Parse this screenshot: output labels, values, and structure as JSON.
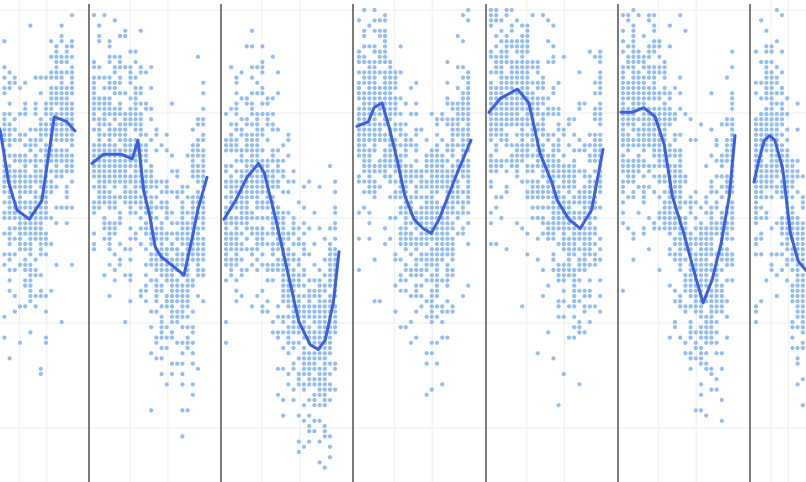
{
  "chart_data": {
    "type": "scatter",
    "title": "",
    "xlabel": "",
    "ylabel": "",
    "grid": true,
    "legend": "none",
    "colors": {
      "points": "#93bdf0",
      "line": "#3c5fdc",
      "divider": "#444444",
      "grid": "#eeeeee"
    },
    "panels": [
      {
        "line": [
          [
            0,
            0.78
          ],
          [
            0.1,
            0.74
          ],
          [
            0.2,
            0.63
          ],
          [
            0.3,
            0.57
          ],
          [
            0.45,
            0.55
          ],
          [
            0.6,
            0.59
          ],
          [
            0.75,
            0.77
          ],
          [
            0.9,
            0.76
          ],
          [
            1.0,
            0.74
          ]
        ]
      },
      {
        "line": [
          [
            0,
            0.67
          ],
          [
            0.1,
            0.69
          ],
          [
            0.25,
            0.69
          ],
          [
            0.35,
            0.68
          ],
          [
            0.4,
            0.72
          ],
          [
            0.45,
            0.61
          ],
          [
            0.5,
            0.56
          ],
          [
            0.55,
            0.49
          ],
          [
            0.6,
            0.47
          ],
          [
            0.7,
            0.45
          ],
          [
            0.8,
            0.43
          ],
          [
            0.88,
            0.52
          ],
          [
            0.92,
            0.57
          ],
          [
            1.0,
            0.64
          ]
        ]
      },
      {
        "line": [
          [
            0,
            0.55
          ],
          [
            0.1,
            0.59
          ],
          [
            0.2,
            0.64
          ],
          [
            0.3,
            0.67
          ],
          [
            0.35,
            0.65
          ],
          [
            0.45,
            0.55
          ],
          [
            0.55,
            0.44
          ],
          [
            0.65,
            0.33
          ],
          [
            0.75,
            0.28
          ],
          [
            0.82,
            0.27
          ],
          [
            0.88,
            0.29
          ],
          [
            0.95,
            0.37
          ],
          [
            1.0,
            0.48
          ]
        ]
      },
      {
        "line": [
          [
            0,
            0.75
          ],
          [
            0.1,
            0.76
          ],
          [
            0.15,
            0.79
          ],
          [
            0.22,
            0.8
          ],
          [
            0.28,
            0.75
          ],
          [
            0.35,
            0.68
          ],
          [
            0.42,
            0.6
          ],
          [
            0.5,
            0.55
          ],
          [
            0.58,
            0.53
          ],
          [
            0.65,
            0.52
          ],
          [
            0.72,
            0.55
          ],
          [
            0.8,
            0.6
          ],
          [
            0.88,
            0.65
          ],
          [
            1.0,
            0.72
          ]
        ]
      },
      {
        "line": [
          [
            0,
            0.78
          ],
          [
            0.1,
            0.81
          ],
          [
            0.25,
            0.83
          ],
          [
            0.35,
            0.8
          ],
          [
            0.45,
            0.69
          ],
          [
            0.55,
            0.63
          ],
          [
            0.6,
            0.59
          ],
          [
            0.7,
            0.55
          ],
          [
            0.8,
            0.53
          ],
          [
            0.9,
            0.57
          ],
          [
            1.0,
            0.7
          ]
        ]
      },
      {
        "line": [
          [
            0,
            0.78
          ],
          [
            0.1,
            0.78
          ],
          [
            0.2,
            0.79
          ],
          [
            0.3,
            0.77
          ],
          [
            0.38,
            0.71
          ],
          [
            0.45,
            0.6
          ],
          [
            0.55,
            0.52
          ],
          [
            0.65,
            0.43
          ],
          [
            0.72,
            0.37
          ],
          [
            0.8,
            0.42
          ],
          [
            0.88,
            0.5
          ],
          [
            0.95,
            0.6
          ],
          [
            1.0,
            0.73
          ]
        ]
      },
      {
        "line": [
          [
            0,
            0.63
          ],
          [
            0.1,
            0.68
          ],
          [
            0.2,
            0.72
          ],
          [
            0.3,
            0.73
          ],
          [
            0.4,
            0.72
          ],
          [
            0.55,
            0.66
          ],
          [
            0.7,
            0.52
          ],
          [
            0.85,
            0.46
          ],
          [
            1.0,
            0.44
          ]
        ]
      }
    ]
  }
}
